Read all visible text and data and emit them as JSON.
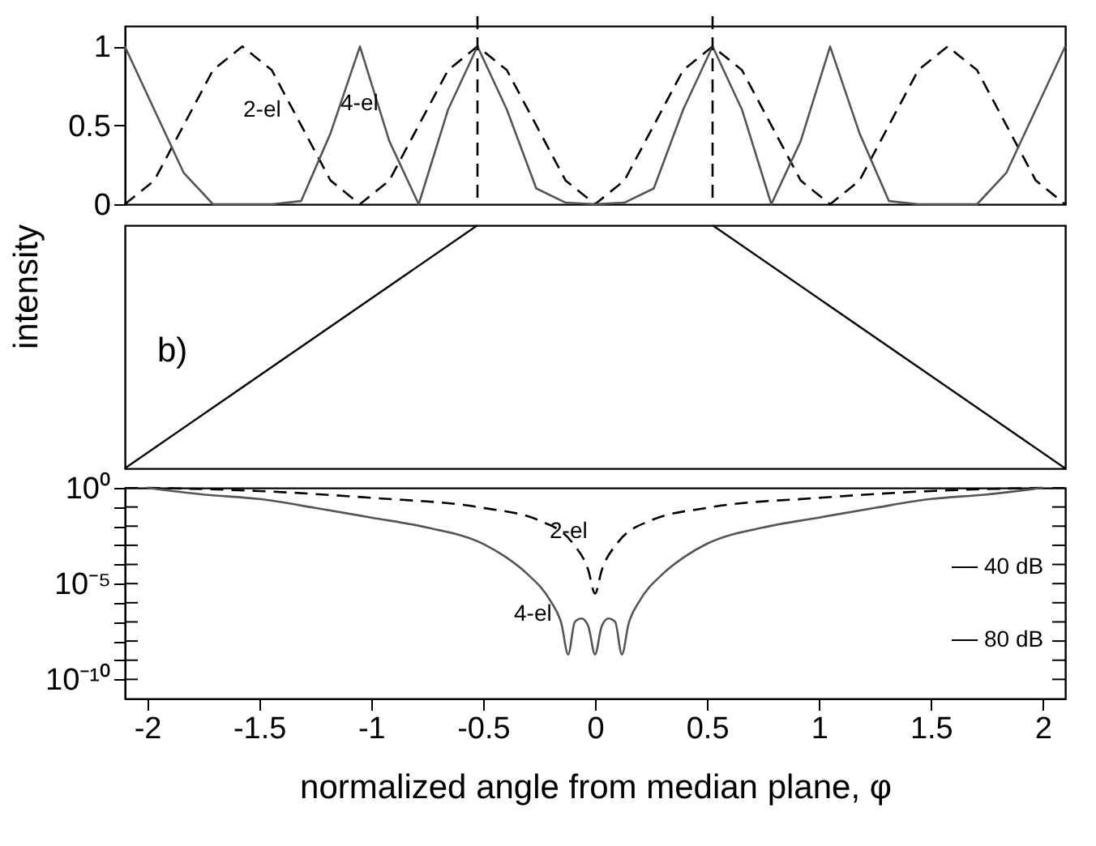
{
  "chart_data": [
    {
      "type": "line",
      "ylabel": "intensity",
      "categories": [
        null,
        null,
        null,
        null,
        null,
        null,
        null,
        null,
        null,
        null,
        null,
        null,
        null,
        null,
        null,
        null,
        null,
        null,
        null,
        null,
        null,
        null,
        null,
        null,
        null,
        null,
        null,
        null,
        null,
        null,
        null,
        null,
        null
      ],
      "series": [
        {
          "color": "#000000",
          "line_style": "dashed",
          "values": [
            0,
            0.15,
            0.5,
            0.85,
            1,
            0.85,
            0.5,
            0.15,
            0,
            0.15,
            0.5,
            0.85,
            1,
            0.85,
            0.5,
            0.15,
            0,
            0.15,
            0.5,
            0.85,
            1,
            0.85,
            0.5,
            0.15,
            0,
            0.15,
            0.5,
            0.85,
            1,
            0.85,
            0.5,
            0.15,
            0
          ]
        },
        {
          "color": "#555555",
          "line_style": "solid",
          "values": [
            1,
            0.6,
            0.2,
            0,
            0,
            0,
            0.02,
            0.45,
            1,
            0.4,
            0,
            0.6,
            1,
            0.6,
            0.1,
            0.01,
            0,
            0.01,
            0.1,
            0.6,
            1,
            0.6,
            0,
            0.4,
            1,
            0.45,
            0.02,
            0,
            0,
            0,
            0.2,
            0.6,
            1
          ]
        }
      ],
      "ylim": [
        0,
        1.13
      ],
      "yticks": [
        0,
        0.5,
        1
      ],
      "tick_labels": "y",
      "grid": false,
      "marker": "none",
      "annotations": [
        "2-el",
        "4-el"
      ]
    },
    {
      "type": "line",
      "xlabel": "normalized angle from median plane, φ",
      "log": "y",
      "series": [
        {
          "color": "#000000",
          "line_style": "dashed",
          "x": [
            -2,
            -1.5,
            -1,
            -0.5,
            -0.25,
            -0.1,
            -0.03,
            0,
            0.03,
            0.1,
            0.25,
            0.5,
            1,
            1.5,
            2
          ],
          "values": [
            1,
            0.68,
            0.3,
            0.09,
            0.02,
            0.0013,
            5e-05,
            3e-06,
            5e-05,
            0.0013,
            0.02,
            0.09,
            0.3,
            0.68,
            1
          ]
        },
        {
          "color": "#555555",
          "line_style": "solid",
          "x": [
            -2,
            -1.75,
            -1.5,
            -1.25,
            -1,
            -0.75,
            -0.5,
            -0.4,
            -0.3,
            -0.2,
            -0.15,
            -0.12,
            -0.09,
            -0.06,
            -0.03,
            0,
            0.03,
            0.06,
            0.09,
            0.12,
            0.15,
            0.2,
            0.3,
            0.4,
            0.5,
            0.75,
            1,
            1.25,
            1.5,
            1.75,
            2
          ],
          "values": [
            1,
            0.45,
            0.26,
            0.09,
            0.028,
            0.0085,
            0.0012,
            0.00025,
            3e-05,
            1.3e-06,
            8e-08,
            2e-09,
            1e-07,
            1.5e-07,
            6e-08,
            2e-09,
            6e-08,
            1.5e-07,
            1e-07,
            2e-09,
            8e-08,
            1.3e-06,
            3e-05,
            0.00025,
            0.0012,
            0.0085,
            0.028,
            0.09,
            0.26,
            0.45,
            1
          ]
        }
      ],
      "xlim": [
        -2.1,
        2.1
      ],
      "xticks": [
        -2,
        -1.5,
        -1,
        -0.5,
        0,
        0.5,
        1,
        1.5,
        2
      ],
      "ylim": [
        1e-11,
        1
      ],
      "yticks": [
        {
          "value": 1,
          "label": "10⁰"
        },
        {
          "value": 0.1,
          "label": null
        },
        {
          "value": 0.01,
          "label": null
        },
        {
          "value": 0.001,
          "label": null
        },
        {
          "value": 0.0001,
          "label": null
        },
        {
          "value": 1e-05,
          "label": "10⁻⁵"
        },
        {
          "value": 1e-06,
          "label": null
        },
        {
          "value": 1e-07,
          "label": null
        },
        {
          "value": 1e-08,
          "label": null
        },
        {
          "value": 1e-09,
          "label": null
        },
        {
          "value": 1e-10,
          "label": "10⁻¹⁰"
        }
      ],
      "grid": false,
      "marker": "none",
      "annotations": [
        "b)",
        "2-el",
        "4-el",
        "40 dB",
        "80 dB"
      ]
    }
  ]
}
